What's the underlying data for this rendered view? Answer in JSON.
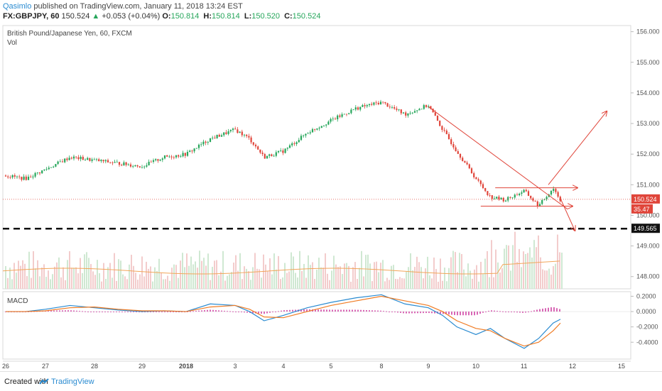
{
  "header": {
    "author": "Qasimlo",
    "published": "published on TradingView.com, January 11, 2018 13:24 EST",
    "symbol": "FX:GBPJPY, 60",
    "last": "150.524",
    "change_arrow": "▲",
    "change": "+0.053 (+0.04%)",
    "o_label": "O:",
    "o": "150.814",
    "h_label": "H:",
    "h": "150.814",
    "l_label": "L:",
    "l": "150.520",
    "c_label": "C:",
    "c": "150.524"
  },
  "footer": {
    "created": "Created with",
    "brand": "TradingView"
  },
  "chart_data": [
    {
      "type": "line",
      "title": "British Pound/Japanese Yen, 60, FXCM",
      "subtitle": "Vol",
      "ylim": [
        147.6,
        156.2
      ],
      "y_ticks": [
        "156.000",
        "155.000",
        "154.000",
        "153.000",
        "152.000",
        "151.000",
        "150.000",
        "149.000",
        "148.000"
      ],
      "y_tick_values": [
        156,
        155,
        154,
        153,
        152,
        151,
        150,
        149,
        148
      ],
      "x_ticks": [
        "26",
        "27",
        "28",
        "29",
        "2018",
        "3",
        "4",
        "5",
        "8",
        "9",
        "10",
        "11",
        "12",
        "15"
      ],
      "price_label": "150.524",
      "price_value": 150.524,
      "volume_label": "35.47",
      "dashed_level_label": "149.565",
      "dashed_level": 149.565,
      "price_path_x": [
        "26",
        "26.5",
        "27",
        "27.5",
        "28",
        "28.5",
        "29",
        "29.5",
        "2018",
        "2018.5",
        "3",
        "3.3",
        "3.6",
        "4",
        "4.5",
        "5",
        "5.5",
        "8",
        "8.5",
        "9",
        "9.3",
        "9.6",
        "10",
        "10.3",
        "10.6",
        "11",
        "11.3",
        "11.6",
        "11.75"
      ],
      "price_path_y": [
        151.3,
        151.2,
        151.5,
        151.9,
        151.8,
        151.7,
        151.6,
        151.9,
        152.0,
        152.5,
        152.8,
        152.5,
        151.9,
        152.1,
        152.7,
        153.1,
        153.5,
        153.7,
        153.3,
        153.6,
        152.8,
        152.1,
        151.2,
        150.6,
        150.5,
        150.8,
        150.3,
        150.9,
        150.5
      ],
      "annotations": [
        {
          "type": "trendline",
          "from": [
            "9",
            153.55
          ],
          "to": [
            "11.9",
            150.2
          ]
        },
        {
          "type": "horizontal",
          "from": [
            "10.4",
            150.9
          ],
          "to": [
            "12.1",
            150.9
          ]
        },
        {
          "type": "horizontal",
          "from": [
            "10.1",
            150.3
          ],
          "to": [
            "12.0",
            150.3
          ]
        },
        {
          "type": "arrow",
          "from": [
            "11.5",
            151.0
          ],
          "to": [
            "12.7",
            153.4
          ]
        },
        {
          "type": "arrow",
          "from": [
            "11.75",
            150.55
          ],
          "to": [
            "12.05",
            149.5
          ]
        }
      ]
    },
    {
      "type": "line",
      "title": "MACD",
      "ylim": [
        -0.62,
        0.26
      ],
      "y_ticks": [
        "0.2000",
        "0.0000",
        "-0.2000",
        "-0.4000"
      ],
      "y_tick_values": [
        0.2,
        0.0,
        -0.2,
        -0.4
      ],
      "x": [
        "26",
        "26.5",
        "27",
        "27.5",
        "28",
        "28.5",
        "29",
        "29.5",
        "2018",
        "2018.5",
        "3",
        "3.3",
        "3.6",
        "4",
        "4.5",
        "5",
        "5.5",
        "8",
        "8.5",
        "9",
        "9.3",
        "9.6",
        "10",
        "10.3",
        "10.6",
        "11",
        "11.3",
        "11.6",
        "11.75"
      ],
      "series": [
        {
          "values": [
            0.0,
            0.0,
            0.03,
            0.08,
            0.05,
            0.02,
            0.0,
            0.01,
            0.0,
            0.1,
            0.08,
            0.0,
            -0.12,
            -0.05,
            0.05,
            0.12,
            0.18,
            0.22,
            0.1,
            0.05,
            -0.05,
            -0.2,
            -0.3,
            -0.22,
            -0.35,
            -0.48,
            -0.35,
            -0.15,
            -0.1
          ]
        },
        {
          "values": [
            0.0,
            0.0,
            0.01,
            0.05,
            0.06,
            0.03,
            0.01,
            0.01,
            0.0,
            0.06,
            0.08,
            0.03,
            -0.07,
            -0.08,
            0.0,
            0.08,
            0.14,
            0.2,
            0.14,
            0.08,
            0.0,
            -0.12,
            -0.22,
            -0.25,
            -0.35,
            -0.45,
            -0.4,
            -0.25,
            -0.15
          ]
        }
      ]
    }
  ]
}
